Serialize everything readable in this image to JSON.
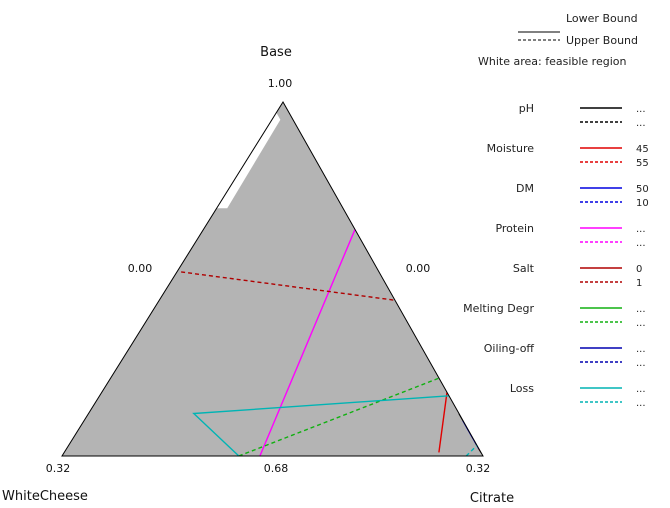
{
  "chart_data": {
    "type": "ternary-constraint",
    "vertices": {
      "top": "Base",
      "bottom_left": "WhiteCheese",
      "bottom_right": "Citrate"
    },
    "tick_labels": {
      "top": "1.00",
      "left_mid": "0.00",
      "right_mid": "0.00",
      "bottom_left": "0.32",
      "bottom_mid": "0.68",
      "bottom_right": "0.32"
    },
    "legend_header": {
      "lower": "Lower Bound",
      "upper": "Upper Bound",
      "note": "White area: feasible region"
    },
    "region_colors": {
      "infeasible": "#b4b4b4",
      "feasible": "#ffffff",
      "frame": "#000000"
    },
    "constraints": [
      {
        "name": "pH",
        "color": "#000000",
        "lower": "...",
        "upper": "...",
        "lower_line": [
          [
            0.01,
            0.0,
            0.99
          ],
          [
            0.12,
            0.0,
            0.88
          ]
        ],
        "upper_line": [
          [
            0.015,
            0.0,
            0.985
          ],
          [
            0.08,
            0.0,
            0.92
          ]
        ]
      },
      {
        "name": "Moisture",
        "color": "#e00000",
        "lower": "45",
        "upper": "55",
        "lower_line": [
          [
            0.01,
            0.1,
            0.89
          ],
          [
            0.18,
            0.0,
            0.82
          ]
        ],
        "upper_line": [
          [
            0.015,
            0.0,
            0.985
          ],
          [
            0.02,
            0.0,
            0.98
          ]
        ]
      },
      {
        "name": "DM",
        "color": "#0000e0",
        "lower": "50",
        "upper": "10",
        "lower_line": [
          [
            0.03,
            0.0,
            0.97
          ],
          [
            0.1,
            0.0,
            0.9
          ]
        ],
        "upper_line": [
          [
            0.02,
            0.0,
            0.98
          ],
          [
            0.08,
            0.0,
            0.92
          ]
        ]
      },
      {
        "name": "Protein",
        "color": "#ff00ff",
        "lower": "...",
        "upper": "...",
        "lower_line": [
          [
            0.64,
            0.0,
            0.36
          ],
          [
            0.0,
            0.53,
            0.47
          ]
        ],
        "upper_line": []
      },
      {
        "name": "Salt",
        "color": "#b00000",
        "lower": "0",
        "upper": "1",
        "lower_line": [],
        "upper_line": [
          [
            0.52,
            0.47,
            0.01
          ],
          [
            0.44,
            0.0,
            0.56
          ]
        ]
      },
      {
        "name": "Melting Degr",
        "color": "#10b010",
        "lower": "...",
        "upper": "...",
        "lower_line": [],
        "upper_line": [
          [
            0.0,
            0.58,
            0.42
          ],
          [
            0.22,
            0.0,
            0.78
          ]
        ]
      },
      {
        "name": "Oiling-off",
        "color": "#0000b0",
        "lower": "...",
        "upper": "...",
        "lower_line": [
          [
            0.06,
            0.0,
            0.94
          ],
          [
            0.1,
            0.0,
            0.9
          ]
        ],
        "upper_line": []
      },
      {
        "name": "Loss",
        "color": "#00b4b4",
        "lower": "...",
        "upper": "...",
        "lower_line": [
          [
            0.0,
            0.58,
            0.42
          ],
          [
            0.12,
            0.63,
            0.25
          ],
          [
            0.17,
            0.0,
            0.83
          ]
        ],
        "upper_line": [
          [
            0.0,
            0.04,
            0.96
          ],
          [
            0.03,
            0.0,
            0.97
          ]
        ]
      }
    ]
  }
}
